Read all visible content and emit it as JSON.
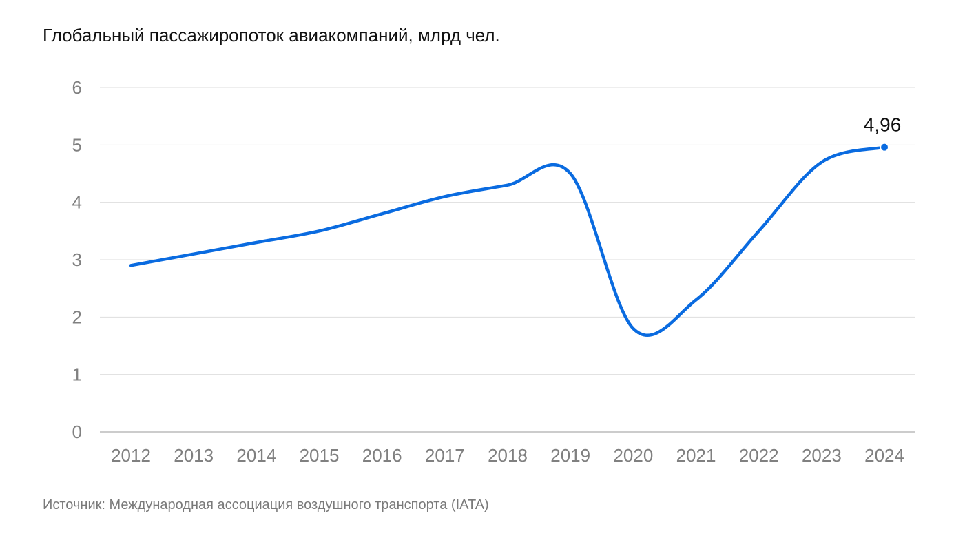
{
  "title": "Глобальный пассажиропоток авиакомпаний, млрд чел.",
  "source": "Источник: Международная ассоциация воздушного транспорта (IATA)",
  "colors": {
    "line": "#0a6be0",
    "grid": "#dedede",
    "axis": "#cccccc",
    "tick_text": "#808080",
    "title_text": "#111111",
    "label_text": "#111111"
  },
  "chart_data": {
    "type": "line",
    "title": "Глобальный пассажиропоток авиакомпаний, млрд чел.",
    "xlabel": "",
    "ylabel": "",
    "categories": [
      "2012",
      "2013",
      "2014",
      "2015",
      "2016",
      "2017",
      "2018",
      "2019",
      "2020",
      "2021",
      "2022",
      "2023",
      "2024"
    ],
    "series": [
      {
        "values": [
          2.9,
          3.1,
          3.3,
          3.5,
          3.8,
          4.1,
          4.3,
          4.5,
          1.8,
          2.3,
          3.5,
          4.7,
          4.96
        ]
      }
    ],
    "ylim": [
      0,
      6
    ],
    "yticks": [
      "0",
      "1",
      "2",
      "3",
      "4",
      "5",
      "6"
    ],
    "grid": true,
    "annotations": [
      {
        "category": "2024",
        "value": 4.96,
        "label": "4,96"
      }
    ]
  }
}
